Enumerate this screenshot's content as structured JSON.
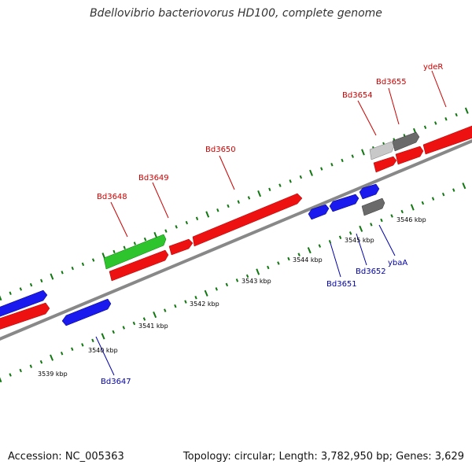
{
  "title": "Bdellovibrio bacteriovorus HD100, complete genome",
  "footer": {
    "accession": "Accession: NC_005363",
    "summary": "Topology: circular; Length: 3,782,950 bp; Genes: 3,629"
  },
  "scale": {
    "kbp_labels": [
      "3539 kbp",
      "3540 kbp",
      "3541 kbp",
      "3542 kbp",
      "3543 kbp",
      "3544 kbp",
      "3545 kbp",
      "3546 kbp"
    ]
  },
  "genes": {
    "forward_labels": [
      "Bd3648",
      "Bd3649",
      "Bd3650",
      "Bd3654",
      "Bd3655",
      "ydeR"
    ],
    "reverse_labels": [
      "Bd3647",
      "Bd3651",
      "Bd3652",
      "ybaA"
    ]
  },
  "colors": {
    "forward_gene": "#ee1111",
    "reverse_gene": "#1a1aee",
    "rna_gene": "#2ec42e",
    "other_gene_light": "#c8c8c8",
    "other_gene_dark": "#6a6a6a",
    "backbone": "#888888",
    "ticks": "#117711",
    "forward_label": "#cc0000",
    "reverse_label": "#0000aa"
  }
}
